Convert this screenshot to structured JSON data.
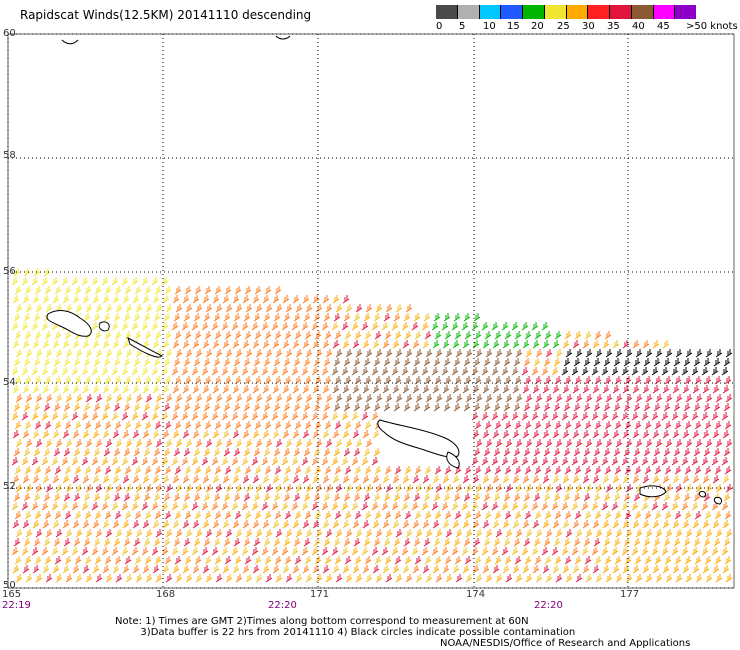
{
  "title": "Rapidscat Winds(12.5KM) 20141110 descending",
  "colorbar": {
    "colors": [
      "#4a4a4a",
      "#b0b0b0",
      "#00c8ff",
      "#1e5aff",
      "#00b400",
      "#f0e632",
      "#ffaa00",
      "#ff2020",
      "#e0143c",
      "#8c5a32",
      "#ff00ff",
      "#8c00c8"
    ],
    "labels": [
      "0",
      "5",
      "10",
      "15",
      "20",
      "25",
      "30",
      "35",
      "40",
      "45",
      ">50 knots"
    ]
  },
  "latitudes": [
    "60",
    "58",
    "56",
    "54",
    "52",
    "50"
  ],
  "longitudes": [
    "165",
    "168",
    "171",
    "174",
    "177"
  ],
  "times": [
    "22:19",
    "22:20",
    "22:20"
  ],
  "notes": "Note: 1) Times are GMT 2)Times along bottom correspond to measurement at 60N\n        3)Data buffer is 22 hrs from 20141110 4) Black circles indicate possible contamination",
  "credit": "NOAA/NESDIS/Office of Research and Applications"
}
